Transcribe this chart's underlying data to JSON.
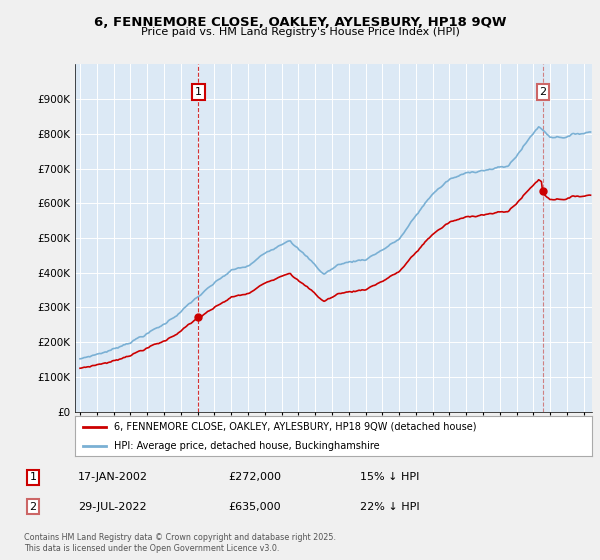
{
  "title": "6, FENNEMORE CLOSE, OAKLEY, AYLESBURY, HP18 9QW",
  "subtitle": "Price paid vs. HM Land Registry's House Price Index (HPI)",
  "sale1_date": "17-JAN-2002",
  "sale1_price": 272000,
  "sale1_hpi_note": "15% ↓ HPI",
  "sale2_date": "29-JUL-2022",
  "sale2_price": 635000,
  "sale2_hpi_note": "22% ↓ HPI",
  "legend_property": "6, FENNEMORE CLOSE, OAKLEY, AYLESBURY, HP18 9QW (detached house)",
  "legend_hpi": "HPI: Average price, detached house, Buckinghamshire",
  "footer": "Contains HM Land Registry data © Crown copyright and database right 2025.\nThis data is licensed under the Open Government Licence v3.0.",
  "property_color": "#cc0000",
  "hpi_color": "#7ab0d4",
  "plot_bg_color": "#dce9f5",
  "bg_color": "#f0f0f0",
  "grid_color": "#ffffff",
  "ylim": [
    0,
    1000000
  ],
  "yticks": [
    0,
    100000,
    200000,
    300000,
    400000,
    500000,
    600000,
    700000,
    800000,
    900000
  ],
  "sale1_x": 2002.04,
  "sale2_x": 2022.57,
  "xstart": 1994.7,
  "xend": 2025.5
}
